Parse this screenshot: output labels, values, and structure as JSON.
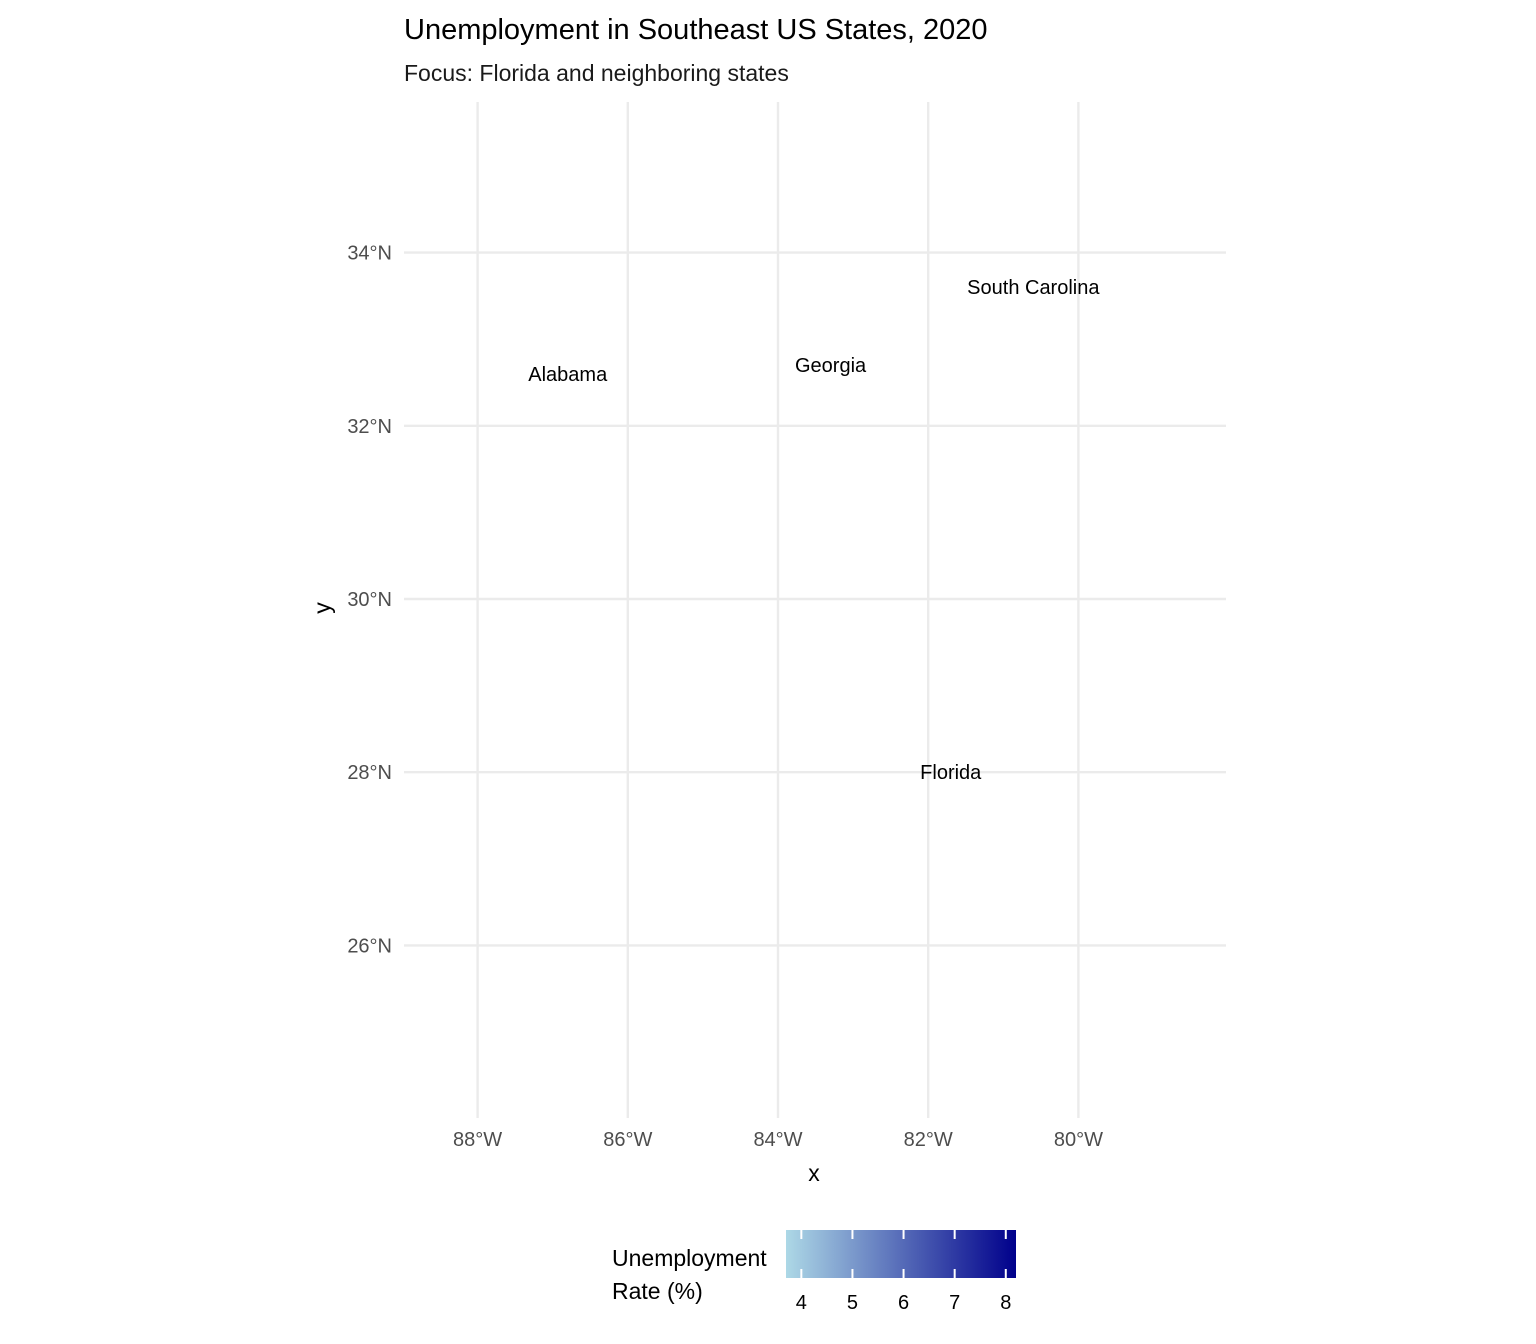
{
  "chart_data": {
    "type": "map",
    "title": "Unemployment in Southeast US States, 2020",
    "subtitle": "Focus: Florida and neighboring states",
    "xlabel": "x",
    "ylabel": "y",
    "xlim": [
      -89,
      -78
    ],
    "ylim": [
      24.25,
      35.75
    ],
    "x_ticks": [
      -88,
      -86,
      -84,
      -82,
      -80
    ],
    "x_tick_labels": [
      "88°W",
      "86°W",
      "84°W",
      "82°W",
      "80°W"
    ],
    "y_ticks": [
      26,
      28,
      30,
      32,
      34
    ],
    "y_tick_labels": [
      "26°N",
      "28°N",
      "30°N",
      "32°N",
      "34°N"
    ],
    "grid": true,
    "states": [
      {
        "name": "Alabama",
        "lon": -86.8,
        "lat": 32.6
      },
      {
        "name": "Georgia",
        "lon": -83.3,
        "lat": 32.7
      },
      {
        "name": "South Carolina",
        "lon": -80.6,
        "lat": 33.6
      },
      {
        "name": "Florida",
        "lon": -81.7,
        "lat": 28.0
      }
    ],
    "legend": {
      "title_lines": [
        "Unemployment",
        "Rate (%)"
      ],
      "position": "bottom",
      "range": [
        3.7,
        8.2
      ],
      "ticks": [
        4,
        5,
        6,
        7,
        8
      ],
      "tick_labels": [
        "4",
        "5",
        "6",
        "7",
        "8"
      ],
      "low_color": "#add8e6",
      "high_color": "#00008b"
    }
  }
}
